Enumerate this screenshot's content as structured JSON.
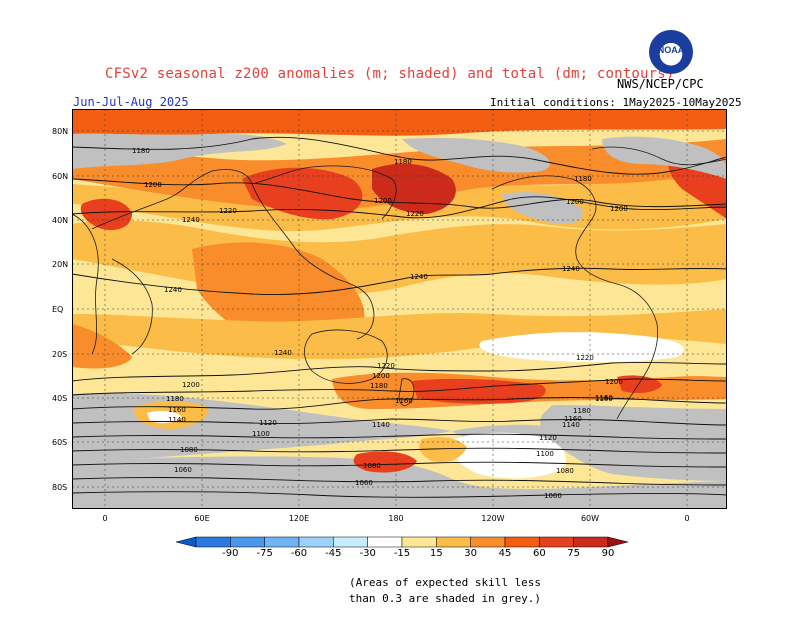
{
  "header": {
    "title": "CFSv2 seasonal z200 anomalies (m; shaded) and total (dm; contours)",
    "agency": "NWS/NCEP/CPC",
    "logo_text": "NOAA",
    "period": "Jun-Jul-Aug 2025",
    "initial_conditions": "Initial conditions: 1May2025-10May2025"
  },
  "map": {
    "lat_labels": [
      "80N",
      "60N",
      "40N",
      "20N",
      "EQ",
      "20S",
      "40S",
      "60S",
      "80S"
    ],
    "lon_labels": [
      "0",
      "60E",
      "120E",
      "180",
      "120W",
      "60W",
      "0"
    ],
    "contour_labels": [
      "1180",
      "1200",
      "1220",
      "1240",
      "1180",
      "1200",
      "1200",
      "1180",
      "1200",
      "1220",
      "1240",
      "1240",
      "1240",
      "1220",
      "1200",
      "1180",
      "1160",
      "1180",
      "1200",
      "1220",
      "1200",
      "1180",
      "1160",
      "1140",
      "1120",
      "1100",
      "1080",
      "1060",
      "1080",
      "1060",
      "1140",
      "1120",
      "1100",
      "1080",
      "1160",
      "1140",
      "1180",
      "1160",
      "1240",
      "1060"
    ],
    "colors": {
      "grey_mask": "#c0c0c0",
      "light_yellow": "#fde797",
      "gold": "#fbbd47",
      "orange": "#f98c2b",
      "dark_orange": "#f35e12",
      "red_orange": "#e8401e",
      "red": "#cc2a1a",
      "white": "#ffffff"
    }
  },
  "legend": {
    "ticks": [
      "-90",
      "-75",
      "-60",
      "-45",
      "-30",
      "-15",
      "15",
      "30",
      "45",
      "60",
      "75",
      "90"
    ],
    "colors": [
      "#0a59c8",
      "#2b79e0",
      "#4b97ec",
      "#6fb4f4",
      "#99d2fa",
      "#c7ecfd",
      "#ffffff",
      "#fde797",
      "#fbbd47",
      "#f98c2b",
      "#f35e12",
      "#e8401e",
      "#cc2a1a",
      "#a01010"
    ]
  },
  "note": {
    "line1": "(Areas of expected skill less",
    "line2": "than 0.3 are shaded in grey.)"
  }
}
